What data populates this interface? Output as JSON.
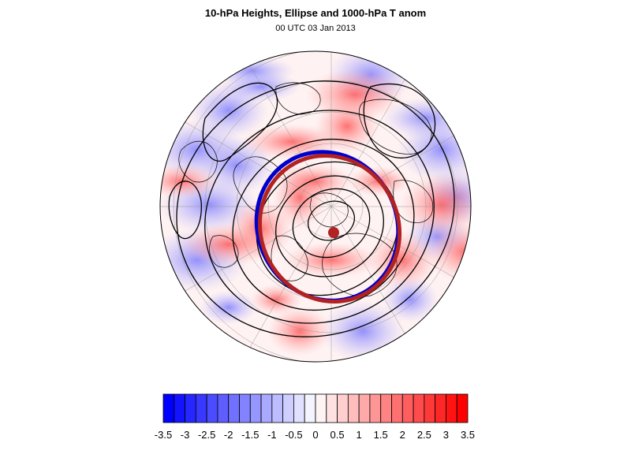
{
  "map": {
    "title": "10-hPa Heights, Ellipse and 1000-hPa T anom",
    "subtitle": "00 UTC 03 Jan 2013",
    "projection": "north-polar-stereographic",
    "colors": {
      "negative_max": "#0000ff",
      "positive_max": "#ff0000",
      "contour": "#000000",
      "ellipse_fit": "#b22222",
      "ellipse_observed": "#0000cc",
      "center_marker": "#b22222",
      "graticule": "#999999"
    }
  },
  "colorbar": {
    "levels": [
      -3.5,
      -3.25,
      -3,
      -2.75,
      -2.5,
      -2.25,
      -2,
      -1.75,
      -1.5,
      -1.25,
      -1,
      -0.75,
      -0.5,
      -0.25,
      0,
      0.25,
      0.5,
      0.75,
      1,
      1.25,
      1.5,
      1.75,
      2,
      2.25,
      2.5,
      2.75,
      3,
      3.25,
      3.5
    ],
    "tick_labels": [
      "-3.5",
      "-3",
      "-2.5",
      "-2",
      "-1.5",
      "-1",
      "-0.5",
      "0",
      "0.5",
      "1",
      "1.5",
      "2",
      "2.5",
      "3",
      "3.5"
    ]
  }
}
